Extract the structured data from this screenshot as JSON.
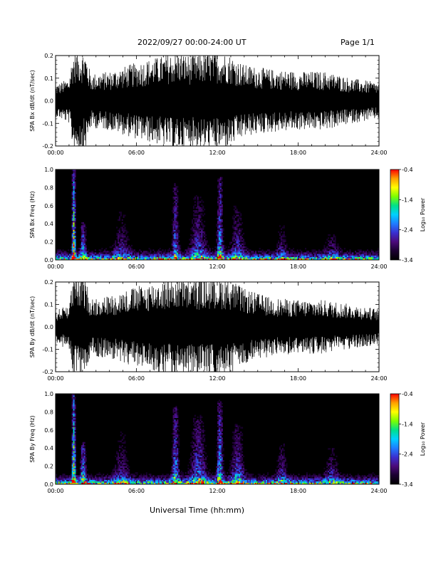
{
  "header": {
    "title": "2022/09/27  00:00-24:00 UT",
    "page": "Page 1/1"
  },
  "xaxis_label": "Universal Time (hh:mm)",
  "colors": {
    "trace": "#000000",
    "spectrogram_background": "#000000",
    "colormap": [
      "#000000",
      "#1a0030",
      "#4b0a7a",
      "#3a2fd0",
      "#1f7cff",
      "#00d0ff",
      "#00e08a",
      "#7cff00",
      "#ffff00",
      "#ffa000",
      "#ff0000"
    ]
  },
  "chart_data": [
    {
      "type": "line",
      "ylabel": "SPA Bx dB/dt (nT/sec)",
      "xlim": [
        0,
        24
      ],
      "xticks": [
        "00:00",
        "06:00",
        "12:00",
        "18:00",
        "24:00"
      ],
      "ylim": [
        -0.2,
        0.2
      ],
      "yticks": [
        "-0.2",
        "-0.1",
        "0.0",
        "0.1",
        "0.2"
      ],
      "activity": [
        {
          "t": 0.0,
          "amp": 0.07
        },
        {
          "t": 1.0,
          "amp": 0.1
        },
        {
          "t": 1.3,
          "amp": 0.22
        },
        {
          "t": 2.2,
          "amp": 0.22
        },
        {
          "t": 2.6,
          "amp": 0.12
        },
        {
          "t": 4.0,
          "amp": 0.13
        },
        {
          "t": 6.0,
          "amp": 0.17
        },
        {
          "t": 8.0,
          "amp": 0.2
        },
        {
          "t": 9.0,
          "amp": 0.22
        },
        {
          "t": 10.0,
          "amp": 0.2
        },
        {
          "t": 11.5,
          "amp": 0.22
        },
        {
          "t": 12.8,
          "amp": 0.21
        },
        {
          "t": 14.0,
          "amp": 0.16
        },
        {
          "t": 16.0,
          "amp": 0.14
        },
        {
          "t": 18.0,
          "amp": 0.13
        },
        {
          "t": 20.0,
          "amp": 0.13
        },
        {
          "t": 22.0,
          "amp": 0.1
        },
        {
          "t": 24.0,
          "amp": 0.08
        }
      ]
    },
    {
      "type": "heatmap",
      "ylabel": "SPA Bx Freq (Hz)",
      "xlim": [
        0,
        24
      ],
      "xticks": [
        "00:00",
        "06:00",
        "12:00",
        "18:00",
        "24:00"
      ],
      "ylim": [
        0.0,
        1.0
      ],
      "yticks": [
        "0.0",
        "0.2",
        "0.4",
        "0.6",
        "0.8",
        "1.0"
      ],
      "colorbar": {
        "label": "Log₁₀ Power",
        "range": [
          -3.4,
          -0.4
        ],
        "ticks": [
          "-0.4",
          "-1.4",
          "-2.4",
          "-3.4"
        ]
      },
      "bursts": [
        {
          "t": 1.35,
          "w": 0.12,
          "amp": 3.0,
          "fmax": 1.0
        },
        {
          "t": 2.05,
          "w": 0.2,
          "amp": 1.6,
          "fmax": 0.4
        },
        {
          "t": 4.9,
          "w": 0.6,
          "amp": 0.8,
          "fmax": 0.55
        },
        {
          "t": 8.9,
          "w": 0.25,
          "amp": 1.5,
          "fmax": 0.85
        },
        {
          "t": 10.6,
          "w": 0.6,
          "amp": 1.1,
          "fmax": 0.7
        },
        {
          "t": 12.2,
          "w": 0.22,
          "amp": 1.8,
          "fmax": 0.9
        },
        {
          "t": 13.5,
          "w": 0.5,
          "amp": 1.0,
          "fmax": 0.6
        },
        {
          "t": 16.8,
          "w": 0.4,
          "amp": 0.7,
          "fmax": 0.4
        },
        {
          "t": 20.5,
          "w": 0.5,
          "amp": 0.6,
          "fmax": 0.35
        }
      ]
    },
    {
      "type": "line",
      "ylabel": "SPA By dB/dt (nT/sec)",
      "xlim": [
        0,
        24
      ],
      "xticks": [
        "00:00",
        "06:00",
        "12:00",
        "18:00",
        "24:00"
      ],
      "ylim": [
        -0.2,
        0.2
      ],
      "yticks": [
        "-0.2",
        "-0.1",
        "0.0",
        "0.1",
        "0.2"
      ],
      "activity": [
        {
          "t": 0.0,
          "amp": 0.07
        },
        {
          "t": 1.0,
          "amp": 0.11
        },
        {
          "t": 1.3,
          "amp": 0.22
        },
        {
          "t": 2.2,
          "amp": 0.22
        },
        {
          "t": 2.6,
          "amp": 0.13
        },
        {
          "t": 4.0,
          "amp": 0.14
        },
        {
          "t": 6.0,
          "amp": 0.18
        },
        {
          "t": 8.0,
          "amp": 0.21
        },
        {
          "t": 9.0,
          "amp": 0.22
        },
        {
          "t": 10.0,
          "amp": 0.21
        },
        {
          "t": 11.5,
          "amp": 0.22
        },
        {
          "t": 12.8,
          "amp": 0.22
        },
        {
          "t": 14.0,
          "amp": 0.17
        },
        {
          "t": 16.0,
          "amp": 0.13
        },
        {
          "t": 18.0,
          "amp": 0.12
        },
        {
          "t": 20.0,
          "amp": 0.12
        },
        {
          "t": 22.0,
          "amp": 0.1
        },
        {
          "t": 24.0,
          "amp": 0.08
        }
      ]
    },
    {
      "type": "heatmap",
      "ylabel": "SPA By Freq (Hz)",
      "xlim": [
        0,
        24
      ],
      "xticks": [
        "00:00",
        "06:00",
        "12:00",
        "18:00",
        "24:00"
      ],
      "ylim": [
        0.0,
        1.0
      ],
      "yticks": [
        "0.0",
        "0.2",
        "0.4",
        "0.6",
        "0.8",
        "1.0"
      ],
      "colorbar": {
        "label": "Log₁₀ Power",
        "range": [
          -3.4,
          -0.4
        ],
        "ticks": [
          "-0.4",
          "-1.4",
          "-2.4",
          "-3.4"
        ]
      },
      "bursts": [
        {
          "t": 1.35,
          "w": 0.12,
          "amp": 3.0,
          "fmax": 1.0
        },
        {
          "t": 2.05,
          "w": 0.2,
          "amp": 1.8,
          "fmax": 0.45
        },
        {
          "t": 4.9,
          "w": 0.6,
          "amp": 0.8,
          "fmax": 0.6
        },
        {
          "t": 8.9,
          "w": 0.25,
          "amp": 1.7,
          "fmax": 0.85
        },
        {
          "t": 10.6,
          "w": 0.6,
          "amp": 1.3,
          "fmax": 0.75
        },
        {
          "t": 12.2,
          "w": 0.22,
          "amp": 1.9,
          "fmax": 0.9
        },
        {
          "t": 13.5,
          "w": 0.5,
          "amp": 1.2,
          "fmax": 0.65
        },
        {
          "t": 16.8,
          "w": 0.4,
          "amp": 0.9,
          "fmax": 0.45
        },
        {
          "t": 20.5,
          "w": 0.5,
          "amp": 0.8,
          "fmax": 0.4
        }
      ]
    }
  ]
}
